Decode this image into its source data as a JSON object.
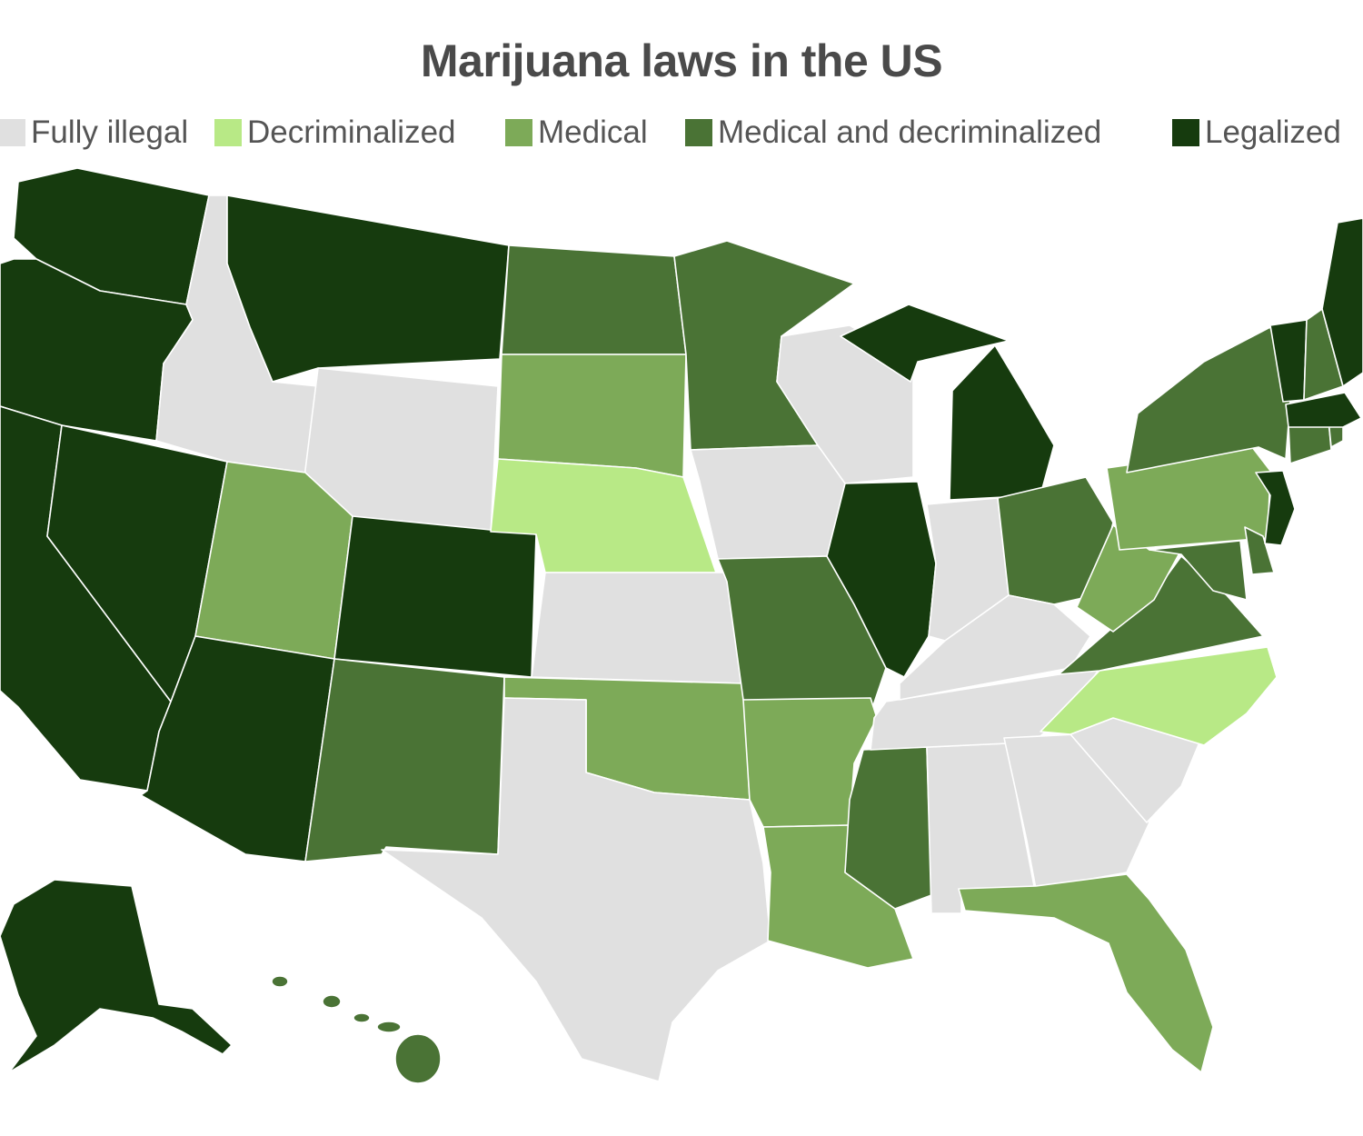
{
  "title": "Marijuana laws in the US",
  "colors": {
    "fully_illegal": "#e0e0e0",
    "decriminalized": "#b8e986",
    "medical": "#7daa58",
    "medical_decriminalized": "#4a7335",
    "legalized": "#163b0e"
  },
  "legend": [
    {
      "label": "Fully illegal",
      "status": "fully_illegal"
    },
    {
      "label": "Decriminalized",
      "status": "decriminalized"
    },
    {
      "label": "Medical",
      "status": "medical"
    },
    {
      "label": "Medical and decriminalized",
      "status": "medical_decriminalized"
    },
    {
      "label": "Legalized",
      "status": "legalized"
    }
  ],
  "states": {
    "WA": "legalized",
    "OR": "legalized",
    "CA": "legalized",
    "NV": "legalized",
    "AZ": "legalized",
    "MT": "legalized",
    "CO": "legalized",
    "AK": "legalized",
    "MI": "legalized",
    "IL": "legalized",
    "VT": "legalized",
    "ME": "legalized",
    "MA": "legalized",
    "NJ": "legalized",
    "ND": "medical_decriminalized",
    "MN": "medical_decriminalized",
    "NM": "medical_decriminalized",
    "MO": "medical_decriminalized",
    "MS": "medical_decriminalized",
    "OH": "medical_decriminalized",
    "NY": "medical_decriminalized",
    "VA": "medical_decriminalized",
    "MD": "medical_decriminalized",
    "DE": "medical_decriminalized",
    "CT": "medical_decriminalized",
    "NH": "medical_decriminalized",
    "RI": "medical_decriminalized",
    "HI": "medical_decriminalized",
    "SD": "medical",
    "UT": "medical",
    "OK": "medical",
    "AR": "medical",
    "LA": "medical",
    "FL": "medical",
    "PA": "medical",
    "WV": "medical",
    "NE": "decriminalized",
    "NC": "decriminalized",
    "ID": "fully_illegal",
    "WY": "fully_illegal",
    "KS": "fully_illegal",
    "TX": "fully_illegal",
    "IA": "fully_illegal",
    "WI": "fully_illegal",
    "IN": "fully_illegal",
    "KY": "fully_illegal",
    "TN": "fully_illegal",
    "AL": "fully_illegal",
    "GA": "fully_illegal",
    "SC": "fully_illegal"
  }
}
